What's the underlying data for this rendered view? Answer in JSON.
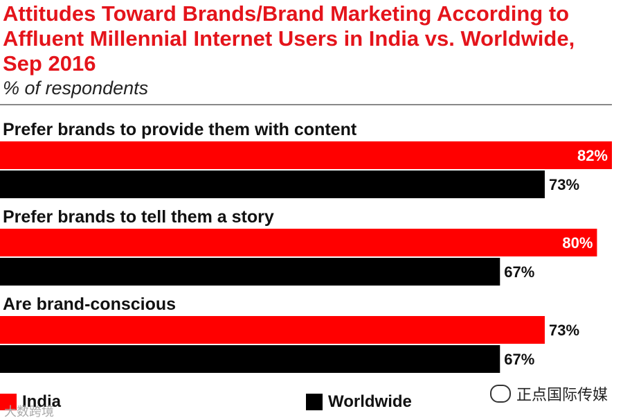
{
  "title": "Attitudes Toward Brands/Brand Marketing According to Affluent Millennial Internet Users in India vs. Worldwide, Sep 2016",
  "subtitle": "% of respondents",
  "colors": {
    "india": "#ff0000",
    "worldwide": "#000000",
    "title": "#e4141b"
  },
  "chart_data": {
    "type": "bar",
    "orientation": "horizontal",
    "categories": [
      "Prefer brands to provide them with content",
      "Prefer brands to tell them a story",
      "Are brand-conscious"
    ],
    "series": [
      {
        "name": "India",
        "values": [
          82,
          80,
          73
        ],
        "color": "#ff0000"
      },
      {
        "name": "Worldwide",
        "values": [
          73,
          67,
          67
        ],
        "color": "#000000"
      }
    ],
    "value_suffix": "%",
    "xlim": [
      0,
      82
    ],
    "legend_position": "bottom",
    "grid": false
  },
  "legend": {
    "india_label": "India",
    "worldwide_label": "Worldwide"
  },
  "watermark": {
    "wechat_text": "正点国际传媒",
    "corner_text": "大数跨境"
  }
}
